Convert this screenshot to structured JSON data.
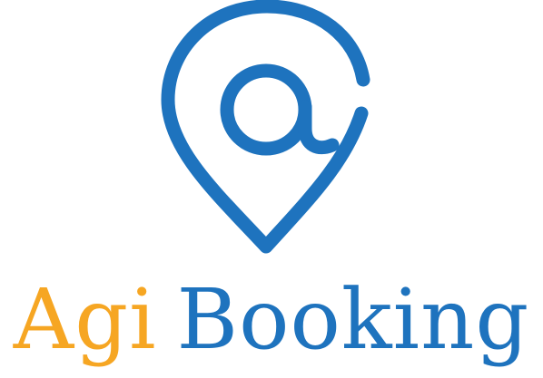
{
  "brand": {
    "word_1": "Agi",
    "word_2": "Booking",
    "colors": {
      "word_1": "#F6A623",
      "word_2": "#1E73BE",
      "icon": "#1E73BE"
    },
    "icon": "location-pin-at-icon"
  }
}
